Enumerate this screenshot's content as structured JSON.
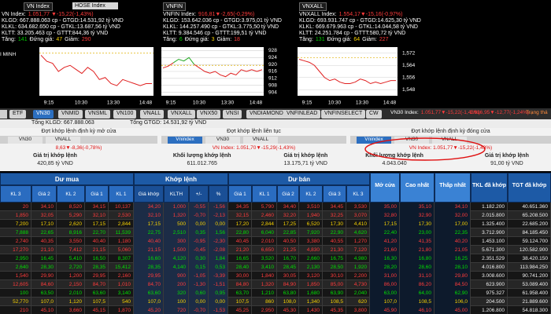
{
  "side_label": "I MINH",
  "index_panels": [
    {
      "tab": "VN Index",
      "select": "HOSE Index",
      "index_name": "VN Index:",
      "index_value": "1.051,77 ▼-15,22(-1,43%)",
      "lines": [
        "KLGD: 667.888.063 cp - GTGD:14.531,92 tỷ VND",
        "KLKL: 634.682.650 cp - GTKL:13.687,56 tỷ VND",
        "KLTT: 33.205.463 cp - GTTT:844,36 tỷ VND"
      ],
      "breadth": [
        {
          "label": "Tăng:",
          "value": "141",
          "color": "#00d000"
        },
        {
          "label": "Đứng giá:",
          "value": "47",
          "color": "#f5d000"
        },
        {
          "label": "Giảm:",
          "value": "290",
          "color": "#ff3b3b"
        }
      ],
      "chart": {
        "type": "line",
        "values": [
          1066,
          1063,
          1062,
          1058,
          1060,
          1061,
          1059,
          1057,
          1060,
          1058,
          1054,
          1055,
          1052,
          1051,
          1054,
          1053,
          1052,
          1051,
          1052,
          1052
        ],
        "reference": 1067,
        "ylim": [
          1046,
          1070
        ],
        "yticks": [],
        "xticks": [
          "9:15",
          "10:30",
          "13:30",
          "14:48"
        ]
      }
    },
    {
      "tab": "VNFIN",
      "index_name": "VNFIN Index:",
      "index_value": "916,81▼-2,65(-0,29%)",
      "lines": [
        "KLGD: 153.642.036 cp - GTGD:3.975,01 tỷ VND",
        "KLKL: 144.257.490 cp - GTKL:3.775,50 tỷ VND",
        "KLTT: 9.384.546 cp - GTTT:199,51 tỷ VND"
      ],
      "breadth": [
        {
          "label": "Tăng:",
          "value": "6",
          "color": "#00d000"
        },
        {
          "label": "Đứng giá:",
          "value": "3",
          "color": "#f5d000"
        },
        {
          "label": "Giảm:",
          "value": "18",
          "color": "#ff3b3b"
        }
      ],
      "chart": {
        "type": "line",
        "values": [
          918,
          919,
          921,
          923,
          922,
          924,
          920,
          918,
          916,
          915,
          916,
          914,
          913,
          915,
          914,
          917,
          916,
          917,
          916,
          917
        ],
        "reference": 919.5,
        "ylim": [
          902,
          930
        ],
        "yticks": [
          904,
          908,
          912,
          916,
          920,
          924,
          928
        ],
        "xticks": [
          "9:15",
          "10:30",
          "13:30",
          "14:48"
        ]
      }
    },
    {
      "tab": "VNXALL",
      "index_name": "VNXALL Index:",
      "index_value": "1.554,17▼-15,16(-0,97%)",
      "lines": [
        "KLGD: 693.931.747 cp - GTGD:14.625,30 tỷ VND",
        "KLKL: 669.679.963 cp - GTKL:14.044,58 tỷ VND",
        "KLTT: 24.251.784 cp - GTTT:580,72 tỷ VND"
      ],
      "breadth": [
        {
          "label": "Tăng:",
          "value": "131",
          "color": "#00d000"
        },
        {
          "label": "Đứng giá:",
          "value": "64",
          "color": "#f5d000"
        },
        {
          "label": "Giảm:",
          "value": "227",
          "color": "#ff3b3b"
        }
      ],
      "chart": {
        "type": "line",
        "values": [
          1568,
          1567,
          1566,
          1564,
          1560,
          1556,
          1554,
          1555,
          1553,
          1552,
          1552,
          1553,
          1555,
          1554,
          1552,
          1553,
          1552,
          1553,
          1554,
          1554
        ],
        "reference": 1569,
        "ylim": [
          1544,
          1576
        ],
        "yticks": [
          {
            "value": 1548,
            "label": "1,548"
          },
          {
            "value": 1556,
            "label": "1,556"
          },
          {
            "value": 1564,
            "label": "1,564"
          },
          {
            "value": 1572,
            "label": "1,572"
          }
        ],
        "xticks": [
          "9:15",
          "10:30",
          "13:30",
          "14:48"
        ]
      }
    }
  ],
  "tabs": [
    "ETF",
    "VN30",
    "VNMID",
    "VNSML",
    "VN100",
    "VNALL",
    "VNXALL",
    "VNX50",
    "VNSI",
    "VNDIAMOND",
    "VNFINLEAD",
    "VNFINSELECT",
    "CW"
  ],
  "active_tab": 1,
  "tab_info": {
    "name": "VN30 Index:",
    "value": "1.051,77▼-15,22(-1,43%)",
    "value2": "1.616,95▼-12,77(-1,24%)",
    "status": "Trạng thá"
  },
  "totals": [
    "Tổng KLGD: 667.888.063",
    "Tổng GTGD: 14.531,92 tỷ VND"
  ],
  "sessions": [
    {
      "title": "Đợt khớp lệnh định kỳ mở cửa",
      "tabs": [
        "VN30",
        "VNALL"
      ],
      "index": "8,63▼-8,36(-0,78%)",
      "metrics": [
        {
          "label": "Giá trị khớp lệnh",
          "value": "420,85 tỷ VND"
        }
      ]
    },
    {
      "title": "Đợt khớp lệnh liên tục",
      "tabs": [
        "Vnindex",
        "VN30",
        "VNALL"
      ],
      "active": 0,
      "index": "VN Index: 1.051,70▼-15,29(-1,43%)",
      "metrics": [
        {
          "label": "Khối lượng khớp lệnh",
          "value": "611.012.765"
        },
        {
          "label": "Giá trị khớp lệnh",
          "value": "13.175,71 tỷ VND"
        }
      ]
    },
    {
      "title": "Đợt khớp lệnh định kỳ đóng cửa",
      "tabs": [
        "Vnindex",
        "VN30",
        "VNALL"
      ],
      "active": 0,
      "index": "VN Index: 1.051,77▼-15,22(-1,43%)",
      "metrics": [
        {
          "label": "Khối lượng khớp lệnh",
          "value": "4.043.040"
        },
        {
          "label": "Giá trị khớp lệnh",
          "value": "91,00 tỷ VND"
        }
      ]
    }
  ],
  "table": {
    "groups": [
      "Dư mua",
      "Khớp lệnh",
      "Dư bán"
    ],
    "subheaders": [
      "KL 3",
      "Giá 2",
      "KL 2",
      "Giá 1",
      "KL 1",
      "Giá khớp",
      "KLTH",
      "+/-",
      "%",
      "Giá 1",
      "KL 1",
      "Giá 2",
      "KL 2",
      "Giá 3",
      "KL 3"
    ],
    "summary_headers": [
      "Mở cửa",
      "Cao nhất",
      "Thấp nhất",
      "TKL đã khớp",
      "TGT đã khớp"
    ],
    "rows": [
      {
        "color": "#ff3b3b",
        "cells": [
          "20",
          "34,10",
          "8,520",
          "34,15",
          "10,137",
          "34,20",
          "1,000",
          "-0,55",
          "-1,56",
          "34,35",
          "5,790",
          "34,40",
          "3,510",
          "34,45",
          "3,530",
          "35,00",
          "35,10",
          "34,10",
          "1.182.200",
          "40.651.360"
        ]
      },
      {
        "color": "#ff3b3b",
        "cells": [
          "1,850",
          "32,05",
          "5,290",
          "32,10",
          "2,530",
          "32,10",
          "1,320",
          "-0,70",
          "-2,13",
          "32,15",
          "2,460",
          "32,20",
          "1,940",
          "32,25",
          "3,070",
          "32,80",
          "32,90",
          "32,00",
          "2.015.800",
          "65.208.500"
        ]
      },
      {
        "color": "#f5d000",
        "cells": [
          "7,200",
          "17,10",
          "2,620",
          "17,15",
          "2,844",
          "17,15",
          "500",
          "0,00",
          "0,00",
          "17,20",
          "2,844",
          "17,25",
          "6,520",
          "17,30",
          "4,410",
          "17,15",
          "17,30",
          "17,00",
          "1.325.400",
          "22.685.200"
        ]
      },
      {
        "color": "#00e000",
        "cells": [
          "7,888",
          "22,65",
          "8,916",
          "22,70",
          "11,539",
          "22,75",
          "2,510",
          "0,35",
          "1,56",
          "22,80",
          "6,040",
          "22,85",
          "7,920",
          "22,90",
          "4,620",
          "22,40",
          "23,00",
          "22,35",
          "3.712.900",
          "84.185.450"
        ]
      },
      {
        "color": "#ff3b3b",
        "cells": [
          "2,740",
          "40,35",
          "3,550",
          "40,40",
          "1,180",
          "40,40",
          "300",
          "-0,95",
          "-2,30",
          "40,45",
          "2,010",
          "40,50",
          "3,380",
          "40,55",
          "1,270",
          "41,20",
          "41,35",
          "40,20",
          "1.453.100",
          "59.124.700"
        ]
      },
      {
        "color": "#ff3b3b",
        "cells": [
          "17,270",
          "21,10",
          "7,412",
          "21,15",
          "5,060",
          "21,15",
          "1,500",
          "-0,45",
          "-2,08",
          "21,20",
          "6,650",
          "21,25",
          "4,830",
          "21,30",
          "7,120",
          "21,60",
          "21,80",
          "21,05",
          "5.671.300",
          "120.582.900"
        ]
      },
      {
        "color": "#00e000",
        "cells": [
          "2,950",
          "16,45",
          "5,410",
          "16,50",
          "8,307",
          "16,60",
          "4,120",
          "0,30",
          "1,84",
          "16,65",
          "3,520",
          "16,70",
          "2,660",
          "16,75",
          "4,980",
          "16,30",
          "16,80",
          "16,25",
          "2.351.529",
          "38.420.150"
        ]
      },
      {
        "color": "#00e000",
        "cells": [
          "2,640",
          "28,30",
          "2,720",
          "28,35",
          "15,412",
          "28,35",
          "4,140",
          "0,15",
          "0,53",
          "28,40",
          "3,410",
          "28,45",
          "2,130",
          "28,50",
          "1,920",
          "28,20",
          "28,60",
          "28,10",
          "4.016.800",
          "113.984.250"
        ]
      },
      {
        "color": "#ff3b3b",
        "cells": [
          "1,540",
          "29,90",
          "1,200",
          "29,95",
          "2,160",
          "29,95",
          "900",
          "-1,05",
          "-3,39",
          "30,00",
          "1,840",
          "30,05",
          "3,120",
          "30,10",
          "2,200",
          "31,00",
          "31,10",
          "29,80",
          "3.008.600",
          "90.741.200"
        ]
      },
      {
        "color": "#ff3b3b",
        "cells": [
          "12,605",
          "84,60",
          "2,150",
          "84,70",
          "1,010",
          "84,70",
          "200",
          "-1,30",
          "-1,51",
          "84,80",
          "1,320",
          "84,90",
          "1,850",
          "85,00",
          "4,730",
          "86,00",
          "86,20",
          "84,50",
          "623.900",
          "53.089.400"
        ]
      },
      {
        "color": "#00e000",
        "cells": [
          "100",
          "63,50",
          "2,010",
          "63,60",
          "3,140",
          "63,60",
          "320",
          "0,60",
          "0,95",
          "63,70",
          "1,210",
          "63,80",
          "1,680",
          "63,90",
          "2,040",
          "63,00",
          "64,00",
          "62,90",
          "975.327",
          "61.958.400"
        ]
      },
      {
        "color": "#f5d000",
        "cells": [
          "52,770",
          "107,0",
          "1,120",
          "107,5",
          "540",
          "107,0",
          "100",
          "0,00",
          "0,00",
          "107,5",
          "860",
          "108,0",
          "1,340",
          "108,5",
          "620",
          "107,0",
          "108,5",
          "106,0",
          "204.500",
          "21.889.600"
        ]
      },
      {
        "color": "#ff3b3b",
        "cells": [
          "210",
          "45,10",
          "3,660",
          "45,15",
          "1,870",
          "45,20",
          "720",
          "-0,70",
          "-1,53",
          "45,25",
          "2,950",
          "45,30",
          "1,430",
          "45,35",
          "3,800",
          "45,90",
          "46,10",
          "45,00",
          "1.206.800",
          "54.818.300"
        ]
      }
    ]
  }
}
